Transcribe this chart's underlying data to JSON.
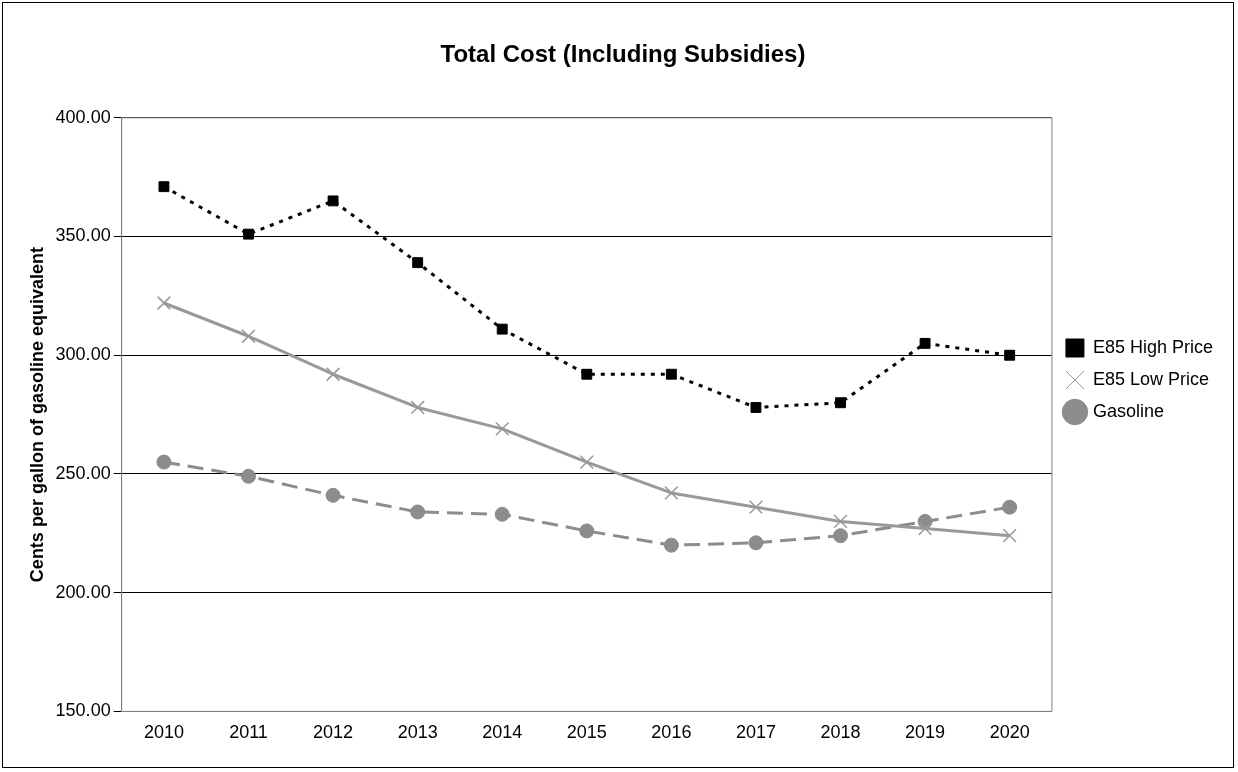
{
  "chart_data": {
    "type": "line",
    "title": "Total Cost (Including Subsidies)",
    "ylabel": "Cents per gallon of gasoline equivalent",
    "categories": [
      "2010",
      "2011",
      "2012",
      "2013",
      "2014",
      "2015",
      "2016",
      "2017",
      "2018",
      "2019",
      "2020"
    ],
    "series": [
      {
        "name": "E85 High Price",
        "color": "#000000",
        "marker": "square",
        "line_style": "dotted",
        "values": [
          371,
          351,
          365,
          339,
          311,
          292,
          292,
          278,
          280,
          305,
          300
        ]
      },
      {
        "name": "E85 Low Price",
        "color": "#999999",
        "marker": "cross",
        "line_style": "solid",
        "values": [
          322,
          308,
          292,
          278,
          269,
          255,
          242,
          236,
          230,
          227,
          224
        ]
      },
      {
        "name": "Gasoline",
        "color": "#8c8c8c",
        "marker": "circle",
        "line_style": "dashed",
        "values": [
          255,
          249,
          241,
          234,
          233,
          226,
          220,
          221,
          224,
          230,
          236
        ]
      }
    ],
    "ylim": [
      150,
      400
    ],
    "yticks": [
      {
        "value": 150,
        "label": "150.00"
      },
      {
        "value": 200,
        "label": "200.00"
      },
      {
        "value": 250,
        "label": "250.00"
      },
      {
        "value": 300,
        "label": "300.00"
      },
      {
        "value": 350,
        "label": "350.00"
      },
      {
        "value": 400,
        "label": "400.00"
      }
    ],
    "grid": "y",
    "legend": "right"
  }
}
